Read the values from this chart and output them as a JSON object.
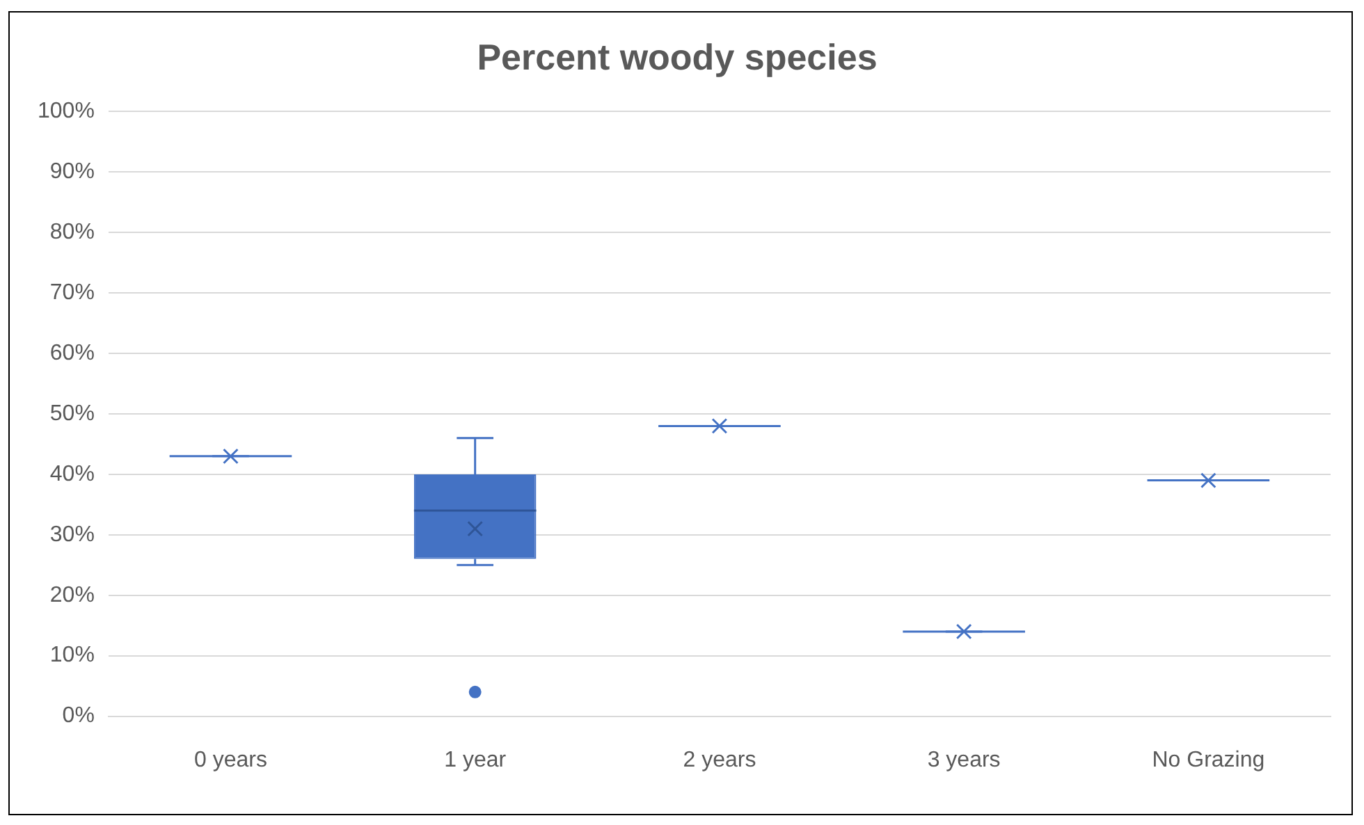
{
  "chart_data": {
    "type": "box",
    "title": "Percent woody species",
    "categories": [
      "0 years",
      "1 year",
      "2 years",
      "3 years",
      "No Grazing"
    ],
    "boxes": [
      {
        "low": 43,
        "q1": 43,
        "median": 43,
        "q3": 43,
        "high": 43,
        "mean": 43
      },
      {
        "low": 25,
        "q1": 26,
        "median": 34,
        "q3": 40,
        "high": 46,
        "mean": 31,
        "outliers": [
          4
        ]
      },
      {
        "low": 48,
        "q1": 48,
        "median": 48,
        "q3": 48,
        "high": 48,
        "mean": 48
      },
      {
        "low": 14,
        "q1": 14,
        "median": 14,
        "q3": 14,
        "high": 14,
        "mean": 14
      },
      {
        "low": 39,
        "q1": 39,
        "median": 39,
        "q3": 39,
        "high": 39,
        "mean": 39
      }
    ],
    "color": "#4472c4",
    "ylim": [
      0,
      100
    ],
    "yticks": [
      {
        "value": 0,
        "label": "0%"
      },
      {
        "value": 10,
        "label": "10%"
      },
      {
        "value": 20,
        "label": "20%"
      },
      {
        "value": 30,
        "label": "30%"
      },
      {
        "value": 40,
        "label": "40%"
      },
      {
        "value": 50,
        "label": "50%"
      },
      {
        "value": 60,
        "label": "60%"
      },
      {
        "value": 70,
        "label": "70%"
      },
      {
        "value": 80,
        "label": "80%"
      },
      {
        "value": 90,
        "label": "90%"
      },
      {
        "value": 100,
        "label": "100%"
      }
    ],
    "grid": "y",
    "legend": false,
    "marker": "cross"
  }
}
